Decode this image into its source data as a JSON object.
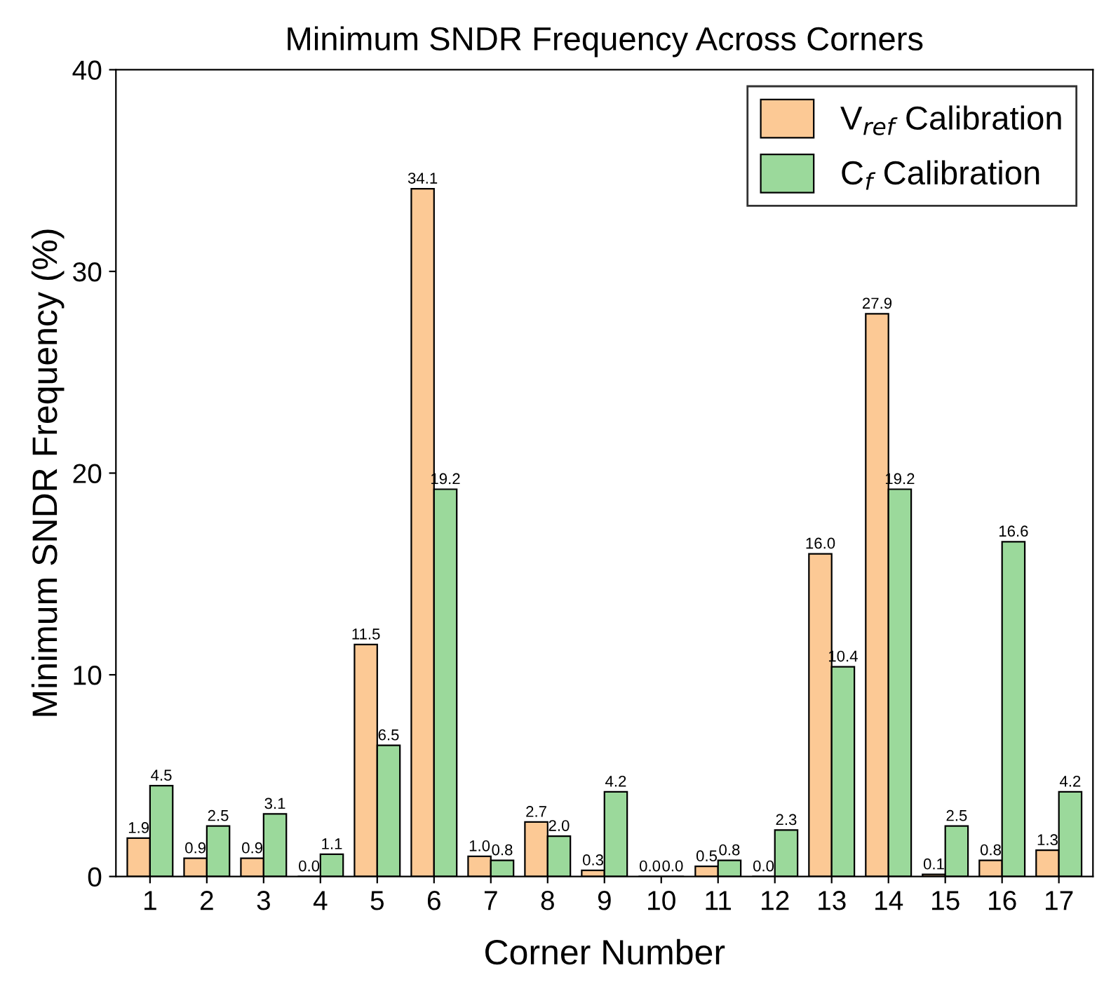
{
  "chart_data": {
    "type": "bar",
    "title": "Minimum SNDR Frequency Across Corners",
    "xlabel": "Corner Number",
    "ylabel": "Minimum SNDR Frequency (%)",
    "categories": [
      "1",
      "2",
      "3",
      "4",
      "5",
      "6",
      "7",
      "8",
      "9",
      "10",
      "11",
      "12",
      "13",
      "14",
      "15",
      "16",
      "17"
    ],
    "series": [
      {
        "name": "V$_{ref}$ Calibration",
        "color": "#fcc995",
        "values": [
          1.9,
          0.9,
          0.9,
          0.0,
          11.5,
          34.1,
          1.0,
          2.7,
          0.3,
          0.0,
          0.5,
          0.0,
          16.0,
          27.9,
          0.1,
          0.8,
          1.3
        ],
        "value_labels": [
          "1.9",
          "0.9",
          "0.9",
          "0.0",
          "11.5",
          "34.1",
          "1.0",
          "2.7",
          "0.3",
          "0.0",
          "0.5",
          "0.0",
          "16.0",
          "27.9",
          "0.1",
          "0.8",
          "1.3"
        ]
      },
      {
        "name": "C$_{f}$ Calibration",
        "color": "#9bd99b",
        "values": [
          4.5,
          2.5,
          3.1,
          1.1,
          6.5,
          19.2,
          0.8,
          2.0,
          4.2,
          0.0,
          0.8,
          2.3,
          10.4,
          19.2,
          2.5,
          16.6,
          4.2
        ],
        "value_labels": [
          "4.5",
          "2.5",
          "3.1",
          "1.1",
          "6.5",
          "19.2",
          "0.8",
          "2.0",
          "4.2",
          "0.0",
          "0.8",
          "2.3",
          "10.4",
          "19.2",
          "2.5",
          "16.6",
          "4.2"
        ]
      }
    ],
    "ylim": [
      0,
      40
    ],
    "yticks": [
      0,
      10,
      20,
      30,
      40
    ],
    "grid": false,
    "legend": "top right"
  }
}
